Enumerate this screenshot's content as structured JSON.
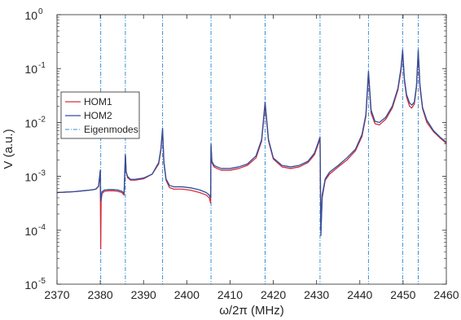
{
  "chart_data": {
    "type": "line",
    "xlabel": "ω/2π (MHz)",
    "ylabel": "V (a.u.)",
    "xlim": [
      2370,
      2460
    ],
    "ylim": [
      1e-05,
      1
    ],
    "yscale": "log",
    "grid": false,
    "legend_placement": "left",
    "xticks": [
      "2370",
      "2380",
      "2390",
      "2400",
      "2410",
      "2420",
      "2430",
      "2440",
      "2450",
      "2460"
    ],
    "yticks": [
      {
        "base": "10",
        "exp": "0",
        "value": 1
      },
      {
        "base": "10",
        "exp": "-1",
        "value": 0.1
      },
      {
        "base": "10",
        "exp": "-2",
        "value": 0.01
      },
      {
        "base": "10",
        "exp": "-3",
        "value": 0.001
      },
      {
        "base": "10",
        "exp": "-4",
        "value": 0.0001
      },
      {
        "base": "10",
        "exp": "-5",
        "value": 1e-05
      }
    ],
    "eigenmodes": [
      2380.1,
      2385.8,
      2394.4,
      2405.6,
      2418.1,
      2430.8,
      2442.0,
      2449.9,
      2453.5
    ],
    "series": [
      {
        "name": "HOM1",
        "color": "#d62d3a",
        "x": [
          2370,
          2372,
          2374,
          2376,
          2378,
          2379,
          2379.6,
          2380.0,
          2380.1,
          2380.2,
          2380.4,
          2381,
          2382,
          2383,
          2384,
          2385,
          2385.5,
          2385.8,
          2386.0,
          2386.3,
          2387,
          2388,
          2390,
          2392,
          2393.5,
          2394.0,
          2394.4,
          2394.7,
          2395.2,
          2396,
          2397,
          2399,
          2401,
          2403,
          2404.5,
          2405.2,
          2405.5,
          2405.6,
          2405.8,
          2406.3,
          2407,
          2408,
          2410,
          2412,
          2414,
          2416,
          2417.3,
          2418.1,
          2418.9,
          2420,
          2422,
          2424,
          2426,
          2428,
          2429.5,
          2430.4,
          2430.8,
          2431.0,
          2431.3,
          2432,
          2433,
          2435,
          2437,
          2439,
          2440.5,
          2441.4,
          2442.0,
          2442.6,
          2443.5,
          2444.5,
          2446,
          2447.5,
          2448.8,
          2449.5,
          2449.9,
          2450.3,
          2450.8,
          2451.5,
          2452.0,
          2452.6,
          2453.1,
          2453.5,
          2453.9,
          2454.5,
          2455.5,
          2457,
          2458.5,
          2460
        ],
        "values": [
          0.0005,
          0.00051,
          0.00052,
          0.00054,
          0.00056,
          0.00058,
          0.00065,
          0.0012,
          4.5e-05,
          0.00035,
          0.00048,
          0.00053,
          0.00054,
          0.00054,
          0.00053,
          0.0005,
          0.00045,
          0.0025,
          0.0012,
          0.00095,
          0.00085,
          0.00085,
          0.0009,
          0.0011,
          0.0017,
          0.003,
          0.007,
          0.0018,
          0.00085,
          0.00062,
          0.00058,
          0.00058,
          0.00055,
          0.0005,
          0.00045,
          0.0004,
          0.00032,
          0.0036,
          0.0018,
          0.0015,
          0.0014,
          0.0013,
          0.0013,
          0.0014,
          0.0016,
          0.0022,
          0.0045,
          0.021,
          0.0045,
          0.0021,
          0.0015,
          0.0014,
          0.0015,
          0.0018,
          0.0025,
          0.004,
          0.005,
          0.0001,
          0.0004,
          0.00085,
          0.0011,
          0.0015,
          0.002,
          0.003,
          0.0055,
          0.013,
          0.08,
          0.015,
          0.0095,
          0.009,
          0.0115,
          0.0185,
          0.04,
          0.09,
          0.2,
          0.06,
          0.03,
          0.02,
          0.0185,
          0.022,
          0.045,
          0.2,
          0.045,
          0.018,
          0.01,
          0.0068,
          0.0052,
          0.0041
        ]
      },
      {
        "name": "HOM2",
        "color": "#2d4f9e",
        "x": [
          2370,
          2372,
          2374,
          2376,
          2378,
          2379,
          2379.6,
          2380.0,
          2380.1,
          2380.2,
          2380.4,
          2381,
          2382,
          2383,
          2384,
          2385,
          2385.5,
          2385.8,
          2386.0,
          2386.3,
          2387,
          2388,
          2390,
          2392,
          2393.5,
          2394.0,
          2394.4,
          2394.7,
          2395.2,
          2396,
          2397,
          2399,
          2401,
          2403,
          2404.5,
          2405.2,
          2405.5,
          2405.6,
          2405.8,
          2406.3,
          2407,
          2408,
          2410,
          2412,
          2414,
          2416,
          2417.3,
          2418.1,
          2418.9,
          2420,
          2422,
          2424,
          2426,
          2428,
          2429.5,
          2430.4,
          2430.8,
          2431.0,
          2431.3,
          2432,
          2433,
          2435,
          2437,
          2439,
          2440.5,
          2441.4,
          2442.0,
          2442.6,
          2443.5,
          2444.5,
          2446,
          2447.5,
          2448.8,
          2449.5,
          2449.9,
          2450.3,
          2450.8,
          2451.5,
          2452.0,
          2452.6,
          2453.1,
          2453.5,
          2453.9,
          2454.5,
          2455.5,
          2457,
          2458.5,
          2460
        ],
        "values": [
          0.0005,
          0.00051,
          0.00052,
          0.00054,
          0.00056,
          0.00058,
          0.00066,
          0.0013,
          0.00035,
          0.0004,
          0.00052,
          0.00056,
          0.00057,
          0.00057,
          0.00056,
          0.00053,
          0.00048,
          0.0025,
          0.0012,
          0.001,
          0.00088,
          0.00088,
          0.00093,
          0.0011,
          0.0018,
          0.0032,
          0.0078,
          0.0019,
          0.0009,
          0.00068,
          0.00064,
          0.00064,
          0.00061,
          0.00056,
          0.0005,
          0.00045,
          0.0004,
          0.004,
          0.0019,
          0.0016,
          0.0015,
          0.0014,
          0.0014,
          0.0015,
          0.0017,
          0.0024,
          0.0048,
          0.024,
          0.0048,
          0.0022,
          0.0016,
          0.0015,
          0.0016,
          0.0019,
          0.0027,
          0.0043,
          0.0054,
          8e-05,
          0.00045,
          0.0009,
          0.0012,
          0.0016,
          0.0022,
          0.0032,
          0.006,
          0.014,
          0.09,
          0.017,
          0.0105,
          0.01,
          0.0125,
          0.02,
          0.043,
          0.1,
          0.22,
          0.065,
          0.033,
          0.023,
          0.021,
          0.024,
          0.048,
          0.22,
          0.05,
          0.019,
          0.011,
          0.0071,
          0.0054,
          0.0043
        ]
      }
    ],
    "legend": {
      "entries": [
        {
          "label": "HOM1",
          "color": "#d62d3a",
          "style": "solid"
        },
        {
          "label": "HOM2",
          "color": "#2d4f9e",
          "style": "solid"
        },
        {
          "label": "Eigenmodes",
          "color": "#3a8fd1",
          "style": "dashdot"
        }
      ]
    }
  }
}
